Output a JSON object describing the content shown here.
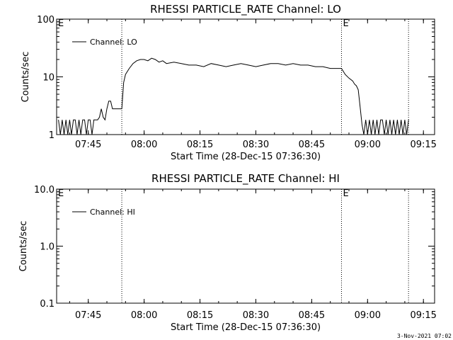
{
  "footer": {
    "timestamp": "3-Nov-2021 07:02"
  },
  "chart_data": [
    {
      "type": "line",
      "title": "RHESSI PARTICLE_RATE Channel: LO",
      "xlabel": "Start Time (28-Dec-15 07:36:30)",
      "ylabel": "Counts/sec",
      "yscale": "log",
      "ylim": [
        1,
        100
      ],
      "xlim": [
        "07:36:30",
        "09:18:00"
      ],
      "xticks": [
        "07:45",
        "08:00",
        "08:15",
        "08:30",
        "08:45",
        "09:00",
        "09:15"
      ],
      "yticks": [
        "1",
        "10",
        "100"
      ],
      "legend": {
        "position": "top-left",
        "entries": [
          "Channel: LO"
        ]
      },
      "markers": [
        {
          "time": "07:54:00",
          "label": ""
        },
        {
          "time": "08:53:00",
          "label": "E"
        },
        {
          "time": "09:11:00",
          "label": ""
        }
      ],
      "corner_label": "E",
      "series": [
        {
          "name": "Channel: LO",
          "color": "#000000",
          "x": [
            "07:37:00",
            "07:37:30",
            "07:38:00",
            "07:38:30",
            "07:39:00",
            "07:39:30",
            "07:40:00",
            "07:40:30",
            "07:41:00",
            "07:41:30",
            "07:42:00",
            "07:42:30",
            "07:43:00",
            "07:43:30",
            "07:44:00",
            "07:44:30",
            "07:45:00",
            "07:45:30",
            "07:46:00",
            "07:46:30",
            "07:47:00",
            "07:47:30",
            "07:48:00",
            "07:48:30",
            "07:49:00",
            "07:49:30",
            "07:50:00",
            "07:50:30",
            "07:51:00",
            "07:51:30",
            "07:52:00",
            "07:52:30",
            "07:53:00",
            "07:53:30",
            "07:54:00",
            "07:54:30",
            "07:55:00",
            "07:56:00",
            "07:57:00",
            "07:58:00",
            "07:59:00",
            "08:00:00",
            "08:01:00",
            "08:02:00",
            "08:03:00",
            "08:04:00",
            "08:05:00",
            "08:06:00",
            "08:08:00",
            "08:10:00",
            "08:12:00",
            "08:14:00",
            "08:16:00",
            "08:18:00",
            "08:20:00",
            "08:22:00",
            "08:24:00",
            "08:26:00",
            "08:28:00",
            "08:30:00",
            "08:32:00",
            "08:34:00",
            "08:36:00",
            "08:38:00",
            "08:40:00",
            "08:42:00",
            "08:44:00",
            "08:46:00",
            "08:48:00",
            "08:50:00",
            "08:52:00",
            "08:53:00",
            "08:54:00",
            "08:55:00",
            "08:56:00",
            "08:56:30",
            "08:57:00",
            "08:57:30",
            "08:58:00",
            "08:58:30",
            "08:59:00",
            "08:59:30",
            "09:00:00",
            "09:00:30",
            "09:01:00",
            "09:01:30",
            "09:02:00",
            "09:02:30",
            "09:03:00",
            "09:03:30",
            "09:04:00",
            "09:04:30",
            "09:05:00",
            "09:05:30",
            "09:06:00",
            "09:06:30",
            "09:07:00",
            "09:07:30",
            "09:08:00",
            "09:08:30",
            "09:09:00",
            "09:09:30",
            "09:10:00",
            "09:10:30",
            "09:11:00"
          ],
          "y": [
            1.8,
            1,
            1.8,
            1,
            1.8,
            1,
            1.8,
            1,
            1.8,
            1.8,
            1,
            1.8,
            1,
            1.8,
            1.8,
            1,
            1.8,
            1.8,
            1,
            1.8,
            1.8,
            1.8,
            2,
            2.8,
            2,
            1.8,
            2.8,
            3.8,
            3.8,
            2.8,
            2.8,
            2.8,
            2.8,
            2.8,
            2.8,
            8,
            11,
            14,
            17,
            19,
            20,
            20,
            19,
            21,
            20,
            18,
            19,
            17,
            18,
            17,
            16,
            16,
            15,
            17,
            16,
            15,
            16,
            17,
            16,
            15,
            16,
            17,
            17,
            16,
            17,
            16,
            16,
            15,
            15,
            14,
            14,
            14,
            11,
            9.5,
            8.5,
            7.5,
            7,
            6,
            3,
            1.5,
            1,
            1.8,
            1,
            1.8,
            1,
            1.8,
            1,
            1.8,
            1,
            1.8,
            1.8,
            1,
            1.8,
            1,
            1.8,
            1,
            1.8,
            1,
            1.8,
            1,
            1.8,
            1,
            1.8,
            1,
            1.8
          ]
        }
      ]
    },
    {
      "type": "line",
      "title": "RHESSI PARTICLE_RATE Channel: HI",
      "xlabel": "Start Time (28-Dec-15 07:36:30)",
      "ylabel": "Counts/sec",
      "yscale": "log",
      "ylim": [
        0.1,
        10
      ],
      "xlim": [
        "07:36:30",
        "09:18:00"
      ],
      "xticks": [
        "07:45",
        "08:00",
        "08:15",
        "08:30",
        "08:45",
        "09:00",
        "09:15"
      ],
      "yticks": [
        "0.1",
        "1.0",
        "10.0"
      ],
      "legend": {
        "position": "top-left",
        "entries": [
          "Channel: HI"
        ]
      },
      "markers": [
        {
          "time": "07:54:00",
          "label": ""
        },
        {
          "time": "08:53:00",
          "label": "E"
        },
        {
          "time": "09:11:00",
          "label": ""
        }
      ],
      "corner_label": "E",
      "series": [
        {
          "name": "Channel: HI",
          "color": "#000000",
          "x": [],
          "y": []
        }
      ]
    }
  ]
}
